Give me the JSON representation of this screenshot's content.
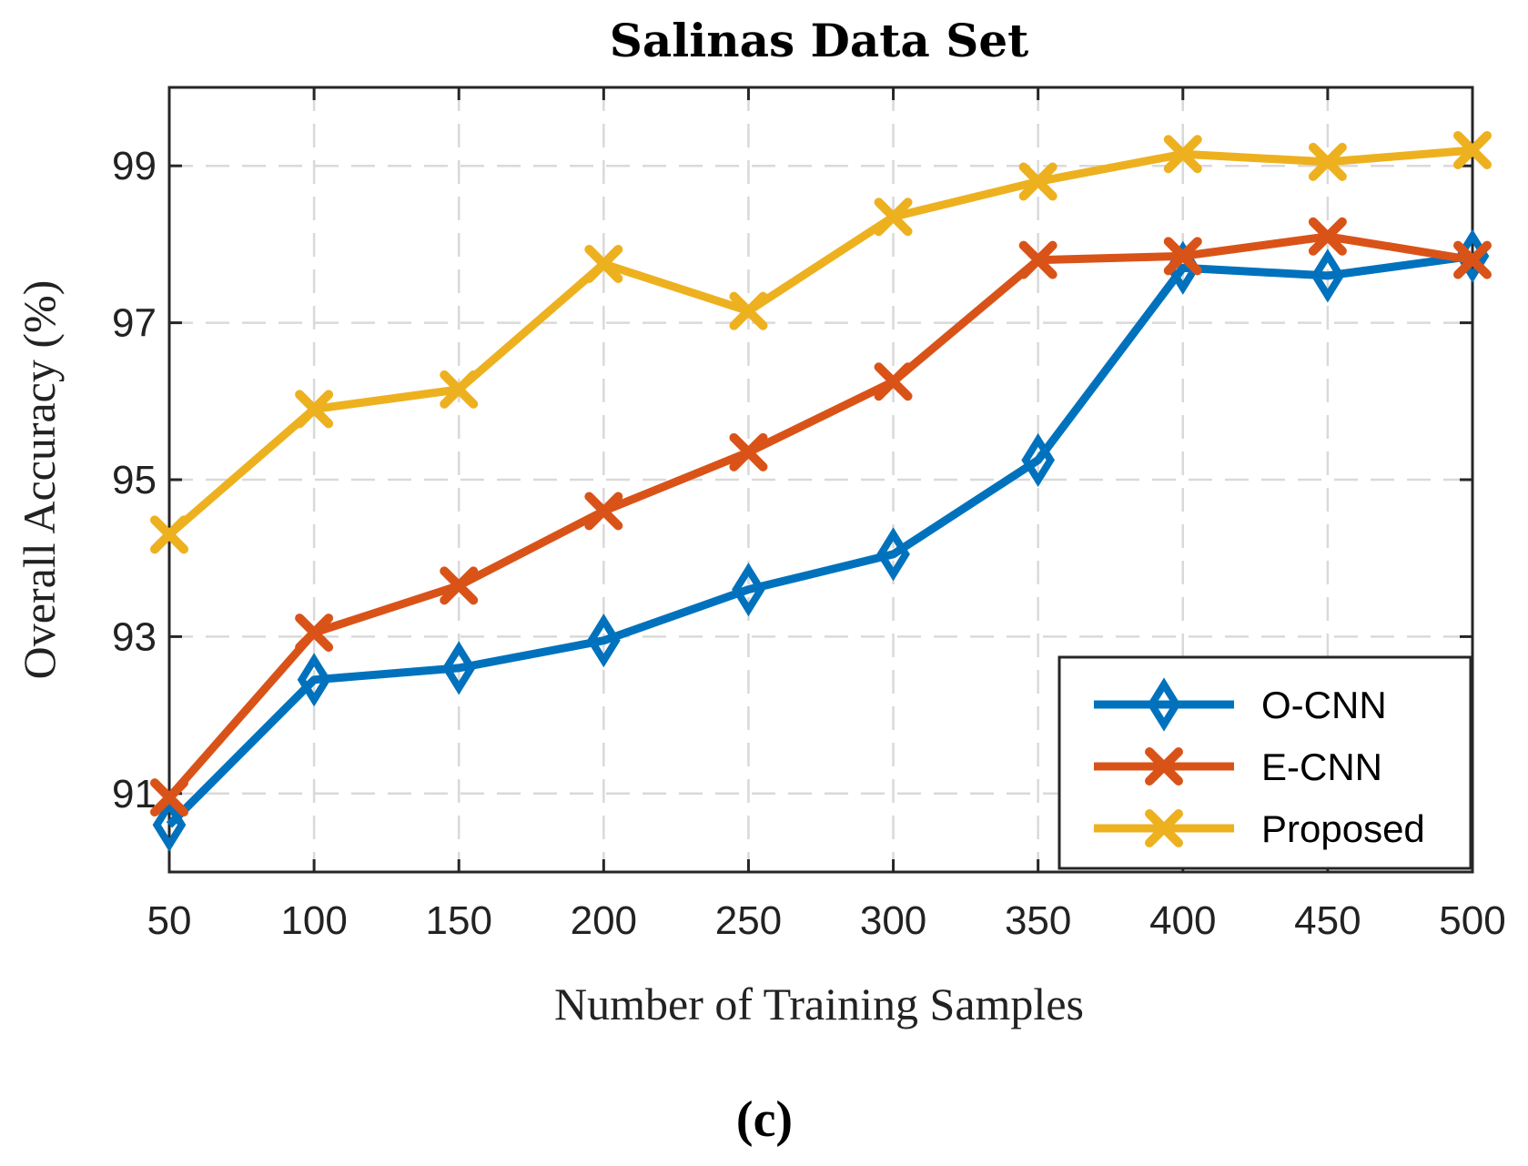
{
  "chart_data": {
    "type": "line",
    "title": "Salinas Data Set",
    "xlabel": "Number of Training Samples",
    "ylabel": "Overall Accuracy (%)",
    "caption": "(c)",
    "x": [
      50,
      100,
      150,
      200,
      250,
      300,
      350,
      400,
      450,
      500
    ],
    "x_tick_labels": [
      "50",
      "100",
      "150",
      "200",
      "250",
      "300",
      "350",
      "400",
      "450",
      "500"
    ],
    "xlim": [
      50,
      500
    ],
    "ylim": [
      90,
      100
    ],
    "y_ticks": [
      91,
      93,
      95,
      97,
      99
    ],
    "y_tick_labels": [
      "91",
      "93",
      "95",
      "97",
      "99"
    ],
    "grid": true,
    "legend_position": "bottom-right",
    "series": [
      {
        "name": "O-CNN",
        "color": "#0072BD",
        "marker": "diamond",
        "values": [
          90.6,
          92.45,
          92.6,
          92.95,
          93.6,
          94.05,
          95.25,
          97.7,
          97.6,
          97.85
        ]
      },
      {
        "name": "E-CNN",
        "color": "#D95319",
        "marker": "x",
        "values": [
          90.95,
          93.05,
          93.65,
          94.6,
          95.35,
          96.25,
          97.8,
          97.85,
          98.1,
          97.8
        ]
      },
      {
        "name": "Proposed",
        "color": "#EDB120",
        "marker": "x",
        "values": [
          94.3,
          95.9,
          96.15,
          97.75,
          97.15,
          98.35,
          98.8,
          99.15,
          99.05,
          99.2
        ]
      }
    ]
  }
}
